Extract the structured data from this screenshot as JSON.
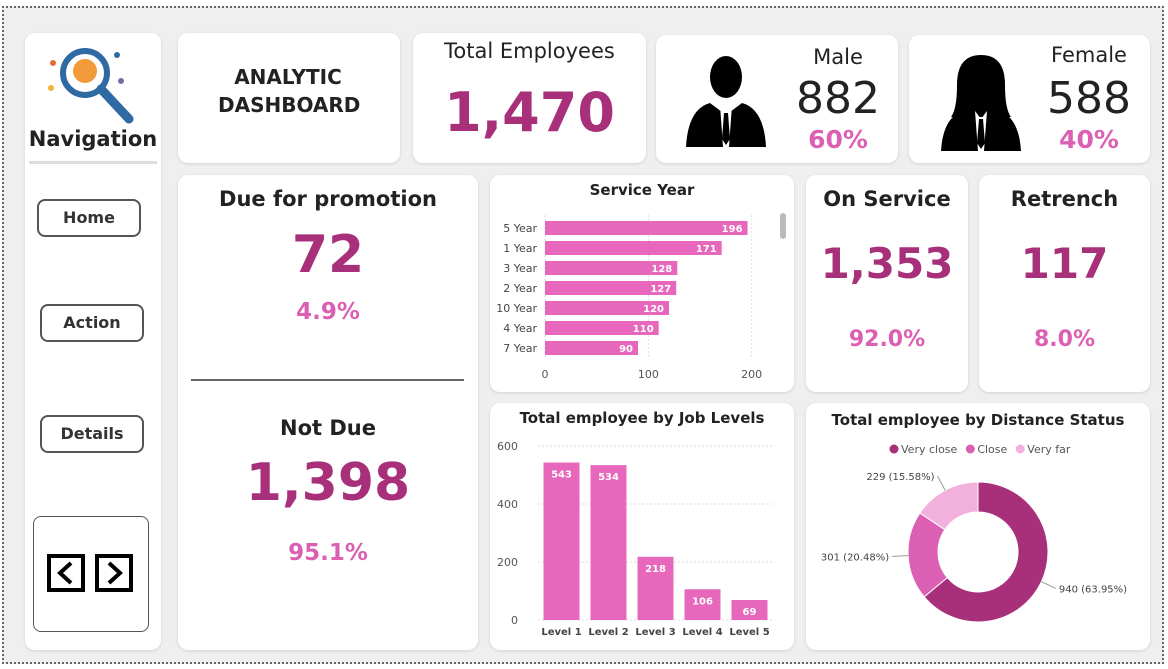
{
  "navigation": {
    "title": "Navigation",
    "buttons": [
      "Home",
      "Action",
      "Details"
    ]
  },
  "header": {
    "title": "ANALYTIC DASHBOARD"
  },
  "total": {
    "label": "Total Employees",
    "value": "1,470"
  },
  "male": {
    "label": "Male",
    "value": "882",
    "percent": "60%"
  },
  "female": {
    "label": "Female",
    "value": "588",
    "percent": "40%"
  },
  "promotion": {
    "due_label": "Due for promotion",
    "due_value": "72",
    "due_percent": "4.9%",
    "not_due_label": "Not Due",
    "not_due_value": "1,398",
    "not_due_percent": "95.1%"
  },
  "on_service": {
    "label": "On Service",
    "value": "1,353",
    "percent": "92.0%"
  },
  "retrench": {
    "label": "Retrench",
    "value": "117",
    "percent": "8.0%"
  },
  "chart_data": [
    {
      "type": "hbar",
      "title": "Service Year",
      "categories": [
        "5 Year",
        "1 Year",
        "3 Year",
        "2 Year",
        "10 Year",
        "4 Year",
        "7 Year"
      ],
      "values": [
        196,
        171,
        128,
        127,
        120,
        110,
        90
      ],
      "color": "#e667bb",
      "xlim": [
        0,
        210
      ],
      "xticks": [
        0,
        100,
        200
      ],
      "grid": true
    },
    {
      "type": "bar",
      "title": "Total employee by Job Levels",
      "categories": [
        "Level 1",
        "Level 2",
        "Level 3",
        "Level 4",
        "Level 5"
      ],
      "values": [
        543,
        534,
        218,
        106,
        69
      ],
      "color": "#e667bb",
      "ylim": [
        0,
        600
      ],
      "yticks": [
        0,
        200,
        400,
        600
      ],
      "grid": true
    },
    {
      "type": "donut",
      "title": "Total employee by Distance Status",
      "categories": [
        "Very close",
        "Close",
        "Very far"
      ],
      "values": [
        940,
        301,
        229
      ],
      "value_labels": [
        "940 (63.95%)",
        "301 (20.48%)",
        "229 (15.58%)"
      ],
      "colors": [
        "#a8307a",
        "#db5fb2",
        "#f1b1dc"
      ],
      "legend": "top"
    }
  ]
}
